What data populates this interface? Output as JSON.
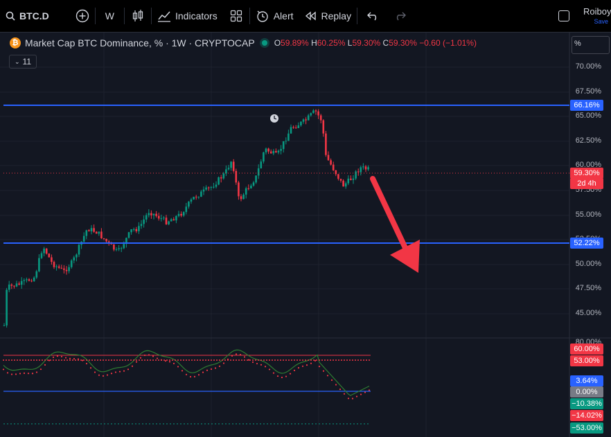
{
  "toolbar": {
    "symbol": "BTC.D",
    "interval": "W",
    "indicators_label": "Indicators",
    "alert_label": "Alert",
    "replay_label": "Replay",
    "user_name": "Roiboy",
    "save_label": "Save"
  },
  "legend": {
    "title": "Market Cap BTC Dominance, % · 1W · CRYPTOCAP",
    "open_label": "O",
    "open": "59.89%",
    "high_label": "H",
    "high": "60.25%",
    "low_label": "L",
    "low": "59.30%",
    "close_label": "C",
    "close": "59.30%",
    "change": "−0.60 (−1.01%)",
    "collapse_count": "11"
  },
  "scale_unit": "%",
  "price_axis": [
    "70.00%",
    "67.50%",
    "65.00%",
    "62.50%",
    "60.00%",
    "57.50%",
    "55.00%",
    "52.50%",
    "50.00%",
    "47.50%",
    "45.00%"
  ],
  "price_tags": {
    "upper_line": "66.16%",
    "lower_line": "52.22%",
    "last_price": "59.30%",
    "countdown": "2d 4h"
  },
  "oscillator_axis": {
    "top": "80.00%",
    "tags": [
      {
        "text": "60.00%",
        "color": "#f23645"
      },
      {
        "text": "53.00%",
        "color": "#f23645"
      },
      {
        "text": "3.64%",
        "color": "#2962ff"
      },
      {
        "text": "0.00%",
        "color": "#787b86"
      },
      {
        "text": "−10.38%",
        "color": "#089981"
      },
      {
        "text": "−14.02%",
        "color": "#f23645"
      },
      {
        "text": "−53.00%",
        "color": "#089981"
      }
    ]
  },
  "colors": {
    "up": "#089981",
    "down": "#f23645",
    "level_line": "#2962ff",
    "annotation_arrow": "#f23645"
  }
}
